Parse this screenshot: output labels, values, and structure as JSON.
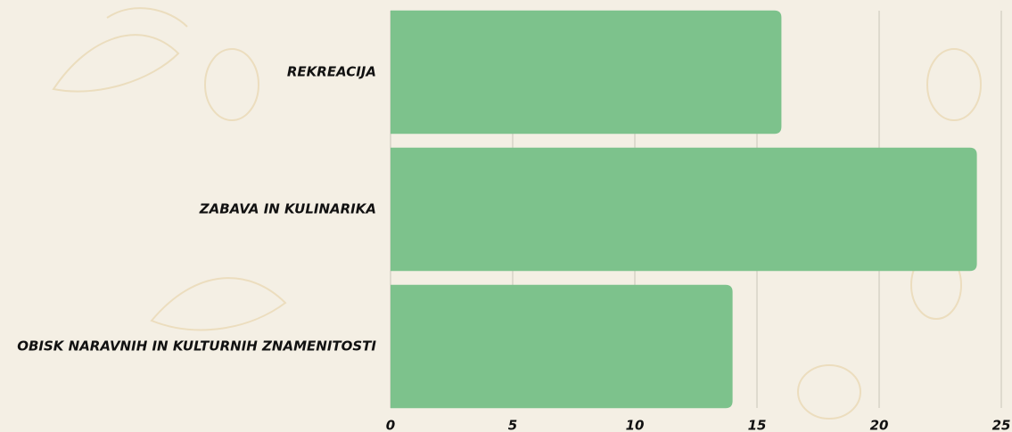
{
  "chart_data": {
    "type": "barh",
    "categories": [
      "REKREACIJA",
      "ZABAVA IN KULINARIKA",
      "OBISK NARAVNIH IN KULTURNIH ZNAMENITOSTI"
    ],
    "values": [
      16,
      24,
      14
    ],
    "color": "#7dc28c",
    "xlim": [
      0,
      25
    ],
    "xticks": [
      0,
      5,
      10,
      15,
      20,
      25
    ],
    "grid": true
  }
}
